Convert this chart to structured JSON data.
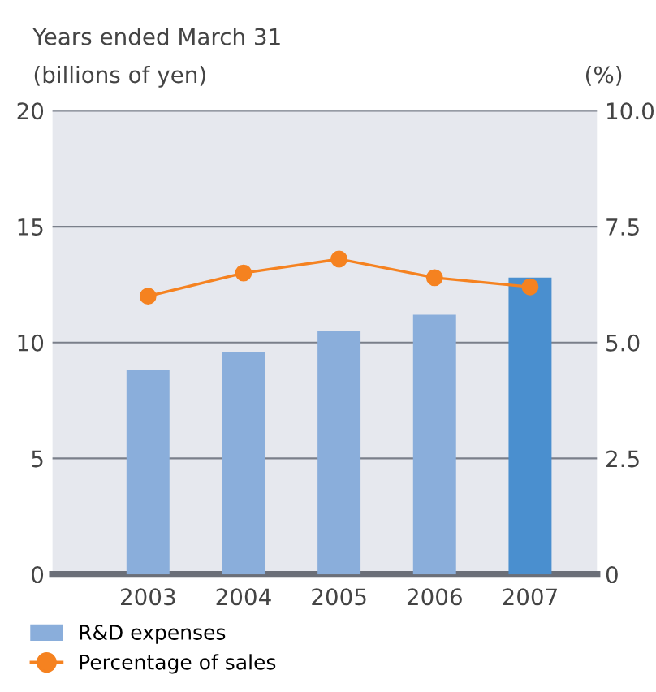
{
  "chart_data": {
    "type": "bar",
    "subtitle": "Years ended March 31",
    "ylabel": "(billions of yen)",
    "y2label": "(%)",
    "categories": [
      "2003",
      "2004",
      "2005",
      "2006",
      "2007"
    ],
    "series": [
      {
        "name": "R&D expenses",
        "color": "#8aaedb",
        "colors": [
          "#8aaedb",
          "#8aaedb",
          "#8aaedb",
          "#8aaedb",
          "#4a8fcf"
        ],
        "values": [
          8.8,
          9.6,
          10.5,
          11.2,
          12.8
        ]
      },
      {
        "name": "Percentage of sales",
        "type": "line",
        "axis": "y2",
        "color": "#f58220",
        "marker": "circle",
        "values": [
          6.0,
          6.5,
          6.8,
          6.4,
          6.2
        ]
      }
    ],
    "ylim": [
      0,
      20
    ],
    "yticks": [
      0,
      5,
      10,
      15,
      20
    ],
    "y2lim": [
      0,
      10
    ],
    "y2ticks": [
      0,
      {
        "value": 2.5,
        "label": "2.5"
      },
      {
        "value": 5,
        "label": "5.0"
      },
      {
        "value": 7.5,
        "label": "7.5"
      },
      {
        "value": 10,
        "label": "10.0"
      }
    ],
    "grid": "y",
    "legend": "bottom"
  }
}
